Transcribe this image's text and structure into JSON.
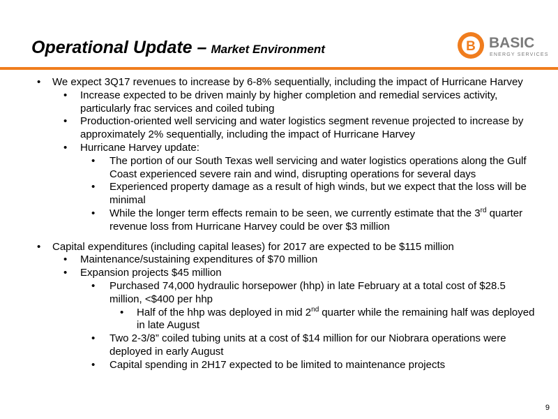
{
  "header": {
    "title": "Operational Update –",
    "subtitle": "Market Environment"
  },
  "logo": {
    "letter": "B",
    "name": "BASIC",
    "tagline": "ENERGY SERVICES"
  },
  "sections": [
    {
      "items": [
        {
          "level": 1,
          "text": "We expect 3Q17 revenues to increase by 6-8% sequentially, including the impact of Hurricane Harvey"
        },
        {
          "level": 2,
          "text": "Increase expected to be driven mainly by higher completion and remedial services activity, particularly frac services and coiled tubing"
        },
        {
          "level": 2,
          "text": "Production-oriented well servicing and water logistics segment revenue projected to increase by approximately 2% sequentially, including the impact of Hurricane Harvey"
        },
        {
          "level": 2,
          "text": "Hurricane Harvey update:"
        },
        {
          "level": 3,
          "text": "The portion of our South Texas well servicing and water logistics operations along the Gulf Coast experienced severe rain and wind, disrupting operations for several days"
        },
        {
          "level": 3,
          "text": "Experienced property damage as a result of high winds, but we expect that the loss will be minimal"
        },
        {
          "level": 3,
          "text": "While the longer term effects remain to be seen, we currently estimate that the 3",
          "sup": "rd",
          "rest": "quarter revenue loss from Hurricane Harvey could be over $3 million"
        }
      ]
    },
    {
      "items": [
        {
          "level": 1,
          "text": "Capital expenditures (including capital leases) for 2017 are expected to be $115 million"
        },
        {
          "level": 2,
          "text": "Maintenance/sustaining expenditures of $70 million"
        },
        {
          "level": 2,
          "text": "Expansion projects $45 million"
        },
        {
          "level": 3,
          "text": "Purchased 74,000 hydraulic horsepower (hhp) in late February at a total cost of $28.5 million, <$400 per hhp"
        },
        {
          "level": 4,
          "text": "Half of the hhp was deployed in mid 2",
          "sup": "nd",
          "rest": "quarter while the remaining half was deployed in late August"
        },
        {
          "level": 3,
          "text": "Two 2-3/8” coiled tubing units at a cost of $14 million for our Niobrara operations were deployed in early August"
        },
        {
          "level": 3,
          "text": "Capital spending in 2H17 expected to be limited to maintenance projects"
        }
      ]
    }
  ],
  "page_number": "9"
}
